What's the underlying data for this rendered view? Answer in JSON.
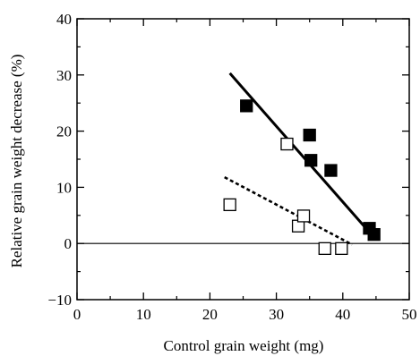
{
  "chart_data": {
    "type": "scatter",
    "title": "",
    "xlabel": "Control grain weight (mg)",
    "ylabel": "Relative grain weight decrease (%)",
    "xlim": [
      0,
      50
    ],
    "ylim": [
      -10,
      40
    ],
    "x_ticks": [
      0,
      10,
      20,
      30,
      40,
      50
    ],
    "x_tick_labels": [
      "0",
      "10",
      "20",
      "30",
      "40",
      "50"
    ],
    "y_ticks": [
      -10,
      0,
      10,
      20,
      30,
      40
    ],
    "y_tick_labels": [
      "−10",
      "0",
      "10",
      "20",
      "30",
      "40"
    ],
    "zero_line": true,
    "grid": false,
    "legend": "none",
    "series": [
      {
        "marker": "filled-square",
        "color": "#000000",
        "points": [
          [
            25.5,
            24.5
          ],
          [
            35.0,
            19.3
          ],
          [
            35.2,
            14.8
          ],
          [
            38.2,
            13.0
          ],
          [
            44.0,
            2.7
          ],
          [
            44.7,
            1.6
          ]
        ],
        "fit_line": {
          "style": "solid",
          "from": [
            23.0,
            30.3
          ],
          "to": [
            44.6,
            1.2
          ]
        }
      },
      {
        "marker": "open-square",
        "color": "#000000",
        "points": [
          [
            23.0,
            6.9
          ],
          [
            31.6,
            17.7
          ],
          [
            33.3,
            3.1
          ],
          [
            34.1,
            4.9
          ],
          [
            37.3,
            -0.9
          ],
          [
            39.8,
            -0.9
          ]
        ],
        "fit_line": {
          "style": "dashed",
          "from": [
            22.2,
            11.8
          ],
          "to": [
            41.4,
            -0.2
          ]
        }
      }
    ]
  }
}
